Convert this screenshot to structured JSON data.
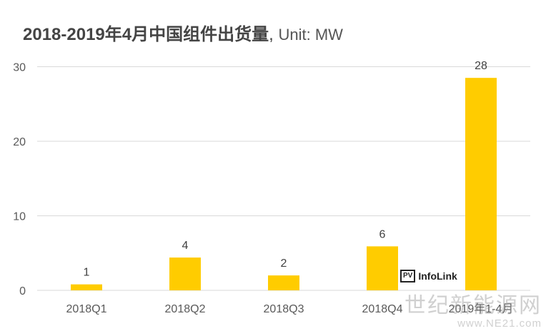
{
  "chart_data": {
    "type": "bar",
    "title": "2018-2019年4月中国组件出货量",
    "unit": "Unit: MW",
    "categories": [
      "2018Q1",
      "2018Q2",
      "2018Q3",
      "2018Q4",
      "2019年1-4月"
    ],
    "values": [
      0.8,
      4.4,
      2.0,
      5.9,
      28.5
    ],
    "data_labels": [
      "1",
      "4",
      "2",
      "6",
      "28"
    ],
    "yticks": [
      0,
      10,
      20,
      30
    ],
    "ylim": [
      0,
      32
    ],
    "grid": true,
    "bar_color": "#FFCC00"
  },
  "logo": {
    "box": "PV",
    "text": "InfoLink"
  },
  "watermark": {
    "cn": "世纪新能源网",
    "url": "www.NE21.com"
  }
}
